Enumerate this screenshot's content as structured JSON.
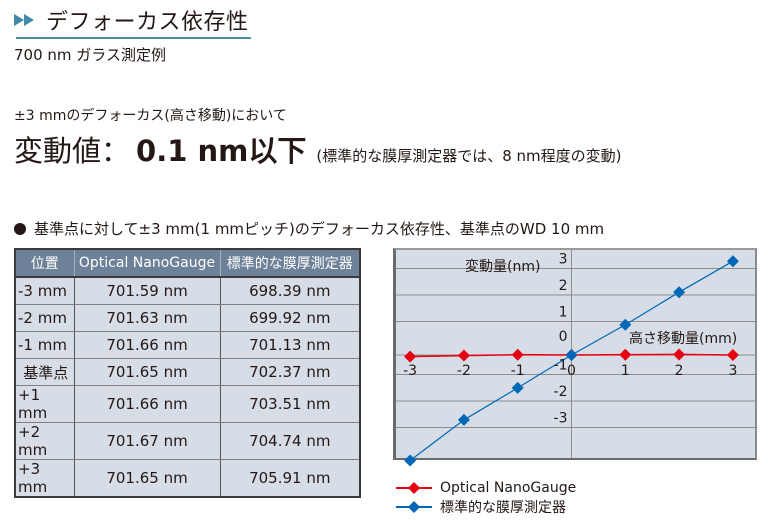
{
  "header": {
    "title": "デフォーカス依存性",
    "subtitle": "700 nm ガラス測定例",
    "arrow_icon": "double-chevron-right-icon",
    "accent_color": "#4a8fa6"
  },
  "summary": {
    "description": "±3 mmのデフォーカス(高さ移動)において",
    "label": "変動値：",
    "value": "0.1 nm以下",
    "note": "(標準的な膜厚測定器では、8 nm程度の変動)"
  },
  "section": {
    "bullet_icon": "filled-circle-icon",
    "heading": "基準点に対して±3 mm(1 mmピッチ)のデフォーカス依存性、基準点のWD 10 mm"
  },
  "table": {
    "headers": [
      "位置",
      "Optical NanoGauge",
      "標準的な膜厚測定器"
    ],
    "rows": [
      [
        "-3 mm",
        "701.59 nm",
        "698.39 nm"
      ],
      [
        "-2 mm",
        "701.63 nm",
        "699.92 nm"
      ],
      [
        "-1 mm",
        "701.66 nm",
        "701.13 nm"
      ],
      [
        "基準点",
        "701.65 nm",
        "702.37 nm"
      ],
      [
        "+1 mm",
        "701.66 nm",
        "703.51 nm"
      ],
      [
        "+2 mm",
        "701.67 nm",
        "704.74 nm"
      ],
      [
        "+3 mm",
        "701.65 nm",
        "705.91 nm"
      ]
    ],
    "header_bg": "#6d8298",
    "cell_bg": "#d6dde6"
  },
  "chart_data": {
    "type": "line",
    "title": "",
    "xlabel": "高さ移動量(mm)",
    "ylabel": "変動量(nm)",
    "x": [
      -3,
      -2,
      -1,
      0,
      1,
      2,
      3
    ],
    "xticks": [
      "-3",
      "-2",
      "-1",
      "0",
      "1",
      "2",
      "3"
    ],
    "yticks": [
      "3",
      "2",
      "1",
      "0",
      "-1",
      "-2",
      "-3"
    ],
    "xlim": [
      -3,
      3
    ],
    "ylim": [
      -3.6,
      3.4
    ],
    "grid": true,
    "legend_position": "bottom",
    "series": [
      {
        "name": "Optical NanoGauge",
        "color": "#e60012",
        "marker": "diamond",
        "values": [
          -0.06,
          -0.02,
          0.01,
          0.0,
          0.01,
          0.02,
          0.0
        ]
      },
      {
        "name": "標準的な膜厚測定器",
        "color": "#0068b7",
        "marker": "diamond",
        "values": [
          -3.98,
          -2.45,
          -1.24,
          0.0,
          1.14,
          2.37,
          3.54
        ]
      }
    ]
  }
}
